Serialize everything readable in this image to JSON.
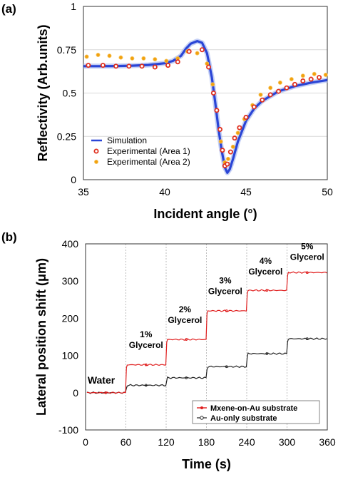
{
  "panels": {
    "a_label": "(a)",
    "b_label": "(b)"
  },
  "chart_data": [
    {
      "type": "line",
      "xlabel": "Incident angle (°)",
      "ylabel": "Reflectivity  (Arb.units)",
      "xlim": [
        35,
        50
      ],
      "ylim": [
        0,
        1
      ],
      "xticks": [
        35,
        40,
        45,
        50
      ],
      "yticks": [
        0,
        0.25,
        0.5,
        0.75,
        1
      ],
      "ytick_labels": [
        "0",
        "0.25",
        "0.5",
        "0.75",
        "1"
      ],
      "grid": "horizontal",
      "legend_position": "bottom-left",
      "colors": {
        "simulation": "#2a45d6",
        "area1": "#e0301e",
        "area2": "#f2a10e"
      },
      "series": [
        {
          "name": "Simulation",
          "style": "line",
          "x": [
            35,
            36,
            37,
            38,
            39,
            40,
            40.5,
            41,
            41.3,
            41.6,
            42,
            42.3,
            42.6,
            42.9,
            43.1,
            43.3,
            43.5,
            43.7,
            43.85,
            44,
            44.2,
            44.5,
            45,
            45.5,
            46,
            47,
            48,
            49,
            50
          ],
          "y": [
            0.655,
            0.655,
            0.656,
            0.658,
            0.662,
            0.672,
            0.685,
            0.715,
            0.755,
            0.785,
            0.8,
            0.79,
            0.73,
            0.59,
            0.45,
            0.3,
            0.17,
            0.07,
            0.04,
            0.06,
            0.12,
            0.22,
            0.34,
            0.41,
            0.455,
            0.51,
            0.54,
            0.56,
            0.575
          ]
        },
        {
          "name": "Experimental (Area 1)",
          "style": "markers",
          "x": [
            35.3,
            36.2,
            37,
            37.8,
            38.6,
            39.4,
            40.2,
            40.8,
            41.5,
            42.3,
            42.7,
            43,
            43.2,
            43.4,
            43.55,
            43.7,
            43.85,
            44.05,
            44.3,
            44.6,
            45,
            45.5,
            46,
            46.5,
            47,
            47.5,
            48,
            48.5,
            49,
            49.5
          ],
          "y": [
            0.66,
            0.66,
            0.655,
            0.655,
            0.655,
            0.65,
            0.66,
            0.68,
            0.74,
            0.75,
            0.65,
            0.5,
            0.4,
            0.29,
            0.17,
            0.08,
            0.09,
            0.16,
            0.24,
            0.3,
            0.36,
            0.42,
            0.46,
            0.49,
            0.51,
            0.53,
            0.55,
            0.57,
            0.58,
            0.59
          ]
        },
        {
          "name": "Experimental (Area 2)",
          "style": "markers",
          "x": [
            35.2,
            35.9,
            36.6,
            37.3,
            38,
            38.7,
            39.4,
            40.1,
            40.8,
            41.4,
            42,
            42.6,
            42.95,
            43.2,
            43.45,
            43.7,
            43.9,
            44.2,
            44.5,
            44.9,
            45.4,
            45.9,
            46.5,
            47.1,
            47.8,
            48.5,
            49.2,
            49.9
          ],
          "y": [
            0.71,
            0.72,
            0.715,
            0.705,
            0.7,
            0.7,
            0.695,
            0.685,
            0.7,
            0.74,
            0.73,
            0.67,
            0.55,
            0.4,
            0.22,
            0.1,
            0.12,
            0.19,
            0.27,
            0.35,
            0.43,
            0.49,
            0.53,
            0.56,
            0.58,
            0.6,
            0.61,
            0.605
          ]
        }
      ]
    },
    {
      "type": "line",
      "xlabel": "Time (s)",
      "ylabel": "Lateral position shift (μm)",
      "xlim": [
        0,
        360
      ],
      "ylim": [
        -100,
        400
      ],
      "xticks": [
        0,
        60,
        120,
        180,
        240,
        300,
        360
      ],
      "yticks": [
        -100,
        0,
        100,
        200,
        300,
        400
      ],
      "vertical_gridlines_at": [
        60,
        120,
        180,
        240,
        300
      ],
      "legend_position": "bottom-right",
      "colors": {
        "mxene": "#e01e1e",
        "au": "#222222"
      },
      "series": [
        {
          "name": "Mxene-on-Au substrate",
          "steps": [
            {
              "from": 0,
              "to": 60,
              "value": 0
            },
            {
              "from": 60,
              "to": 120,
              "value": 75
            },
            {
              "from": 120,
              "to": 180,
              "value": 143
            },
            {
              "from": 180,
              "to": 240,
              "value": 220
            },
            {
              "from": 240,
              "to": 300,
              "value": 275
            },
            {
              "from": 300,
              "to": 360,
              "value": 323
            }
          ]
        },
        {
          "name": "Au-only substrate",
          "steps": [
            {
              "from": 0,
              "to": 60,
              "value": 0
            },
            {
              "from": 60,
              "to": 120,
              "value": 20
            },
            {
              "from": 120,
              "to": 180,
              "value": 40
            },
            {
              "from": 180,
              "to": 240,
              "value": 70
            },
            {
              "from": 240,
              "to": 300,
              "value": 105
            },
            {
              "from": 300,
              "to": 360,
              "value": 145
            }
          ]
        }
      ],
      "annotations": [
        {
          "text": "Water",
          "x": 3,
          "y": 25
        },
        {
          "text": "1%",
          "line2": "Glycerol",
          "x": 90,
          "y": 120
        },
        {
          "text": "2%",
          "line2": "Glycerol",
          "x": 148,
          "y": 187
        },
        {
          "text": "3%",
          "line2": "Glycerol",
          "x": 208,
          "y": 265
        },
        {
          "text": "4%",
          "line2": "Glycerol",
          "x": 268,
          "y": 318
        },
        {
          "text": "5%",
          "line2": "Glycerol",
          "x": 330,
          "y": 357
        }
      ]
    }
  ]
}
